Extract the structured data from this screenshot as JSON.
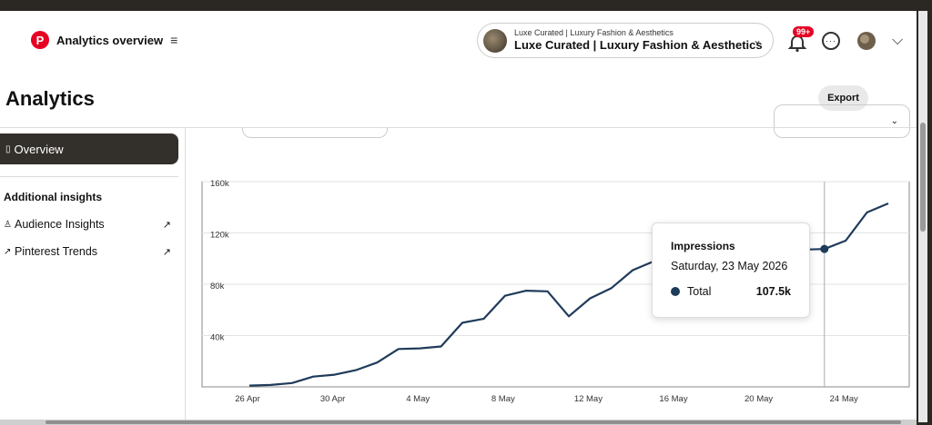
{
  "header": {
    "app_title": "Analytics overview",
    "logo_letter": "P",
    "menu_glyph": "≡",
    "account_subtitle": "Luxe Curated | Luxury Fashion & Aesthetics",
    "account_name": "Luxe Curated | Luxury Fashion & Aesthetics",
    "notifications_badge": "99+"
  },
  "page": {
    "title": "Analytics",
    "export_label": "Export"
  },
  "sidebar": {
    "overview_label": "Overview",
    "section_heading": "Additional insights",
    "links": [
      {
        "label": "Audience Insights"
      },
      {
        "label": "Pinterest Trends"
      }
    ]
  },
  "chart_data": {
    "type": "line",
    "x_tick_labels": [
      "26 Apr",
      "30 Apr",
      "4 May",
      "8 May",
      "12 May",
      "16 May",
      "20 May",
      "24 May"
    ],
    "y_tick_labels": [
      "40k",
      "80k",
      "120k",
      "160k"
    ],
    "ylim": [
      0,
      160000
    ],
    "grid": true,
    "series": [
      {
        "color": "#1f3b5a",
        "x": [
          "2026-04-26",
          "2026-04-27",
          "2026-04-28",
          "2026-04-29",
          "2026-04-30",
          "2026-05-01",
          "2026-05-02",
          "2026-05-03",
          "2026-05-04",
          "2026-05-05",
          "2026-05-06",
          "2026-05-07",
          "2026-05-08",
          "2026-05-09",
          "2026-05-10",
          "2026-05-11",
          "2026-05-12",
          "2026-05-13",
          "2026-05-14",
          "2026-05-15",
          "2026-05-16",
          "2026-05-17",
          "2026-05-18",
          "2026-05-19",
          "2026-05-20",
          "2026-05-21",
          "2026-05-22",
          "2026-05-23",
          "2026-05-24",
          "2026-05-25",
          "2026-05-26"
        ],
        "values": [
          1000,
          1500,
          3000,
          8000,
          9500,
          13000,
          19000,
          29500,
          30000,
          31500,
          50000,
          53000,
          71000,
          75000,
          74500,
          55000,
          69000,
          77000,
          91000,
          98000,
          102000,
          103000,
          104000,
          105000,
          106000,
          106500,
          107000,
          107500,
          114000,
          136000,
          143000
        ]
      }
    ],
    "tooltip": {
      "title": "Impressions",
      "date": "Saturday, 23 May 2026",
      "series_label": "Total",
      "value": "107.5k",
      "highlight_x": "2026-05-23"
    }
  }
}
